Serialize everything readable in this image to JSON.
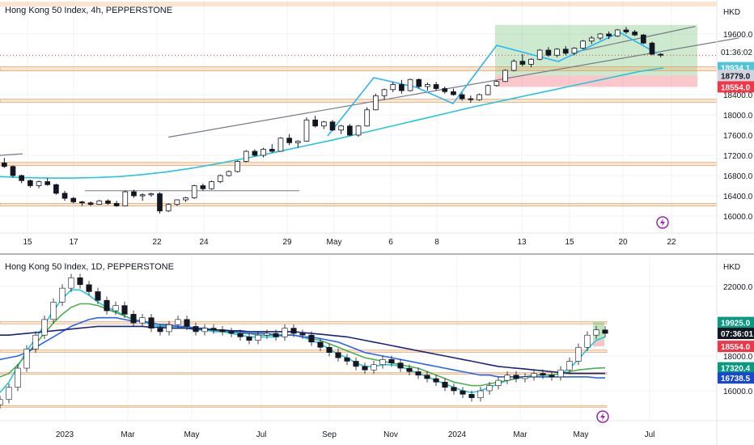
{
  "currency": "HKD",
  "chart_data": [
    {
      "type": "candlestick",
      "title": "Hong Kong 50 Index, 4h, PEPPERSTONE",
      "y_ticks": [
        "19600.0",
        "18400.0",
        "18000.0",
        "17600.0",
        "17200.0",
        "16800.0",
        "16400.0",
        "16000.0"
      ],
      "x_ticks": [
        "15",
        "17",
        "22",
        "24",
        "29",
        "May",
        "6",
        "8",
        "13",
        "15",
        "20",
        "22"
      ],
      "timer": "01:36:02",
      "price_labels": [
        {
          "text": "18934.1",
          "bg": "#4ec6d6"
        },
        {
          "text": "18779.0",
          "bg": "#d1d4dc"
        },
        {
          "text": "18554.0",
          "bg": "#f23645"
        }
      ],
      "zones": [
        {
          "name": "take-profit-zone",
          "low": 18779,
          "high": 19780,
          "color": "#4caf50"
        },
        {
          "name": "stop-zone",
          "low": 18554,
          "high": 18779,
          "color": "#f23645"
        },
        {
          "name": "resistance-band-1",
          "low": 18870,
          "high": 18950,
          "color": "#f0a868"
        },
        {
          "name": "resistance-band-2",
          "low": 18250,
          "high": 18310,
          "color": "#f0a868"
        },
        {
          "name": "support-band-1",
          "low": 17000,
          "high": 17060,
          "color": "#f0a868"
        },
        {
          "name": "support-band-2",
          "low": 16200,
          "high": 16250,
          "color": "#f0a868"
        }
      ],
      "candles_ohlc": [
        [
          17050,
          17150,
          16950,
          16980
        ],
        [
          16980,
          17000,
          16760,
          16800
        ],
        [
          16800,
          16820,
          16650,
          16700
        ],
        [
          16700,
          16720,
          16560,
          16600
        ],
        [
          16600,
          16700,
          16550,
          16680
        ],
        [
          16680,
          16750,
          16600,
          16620
        ],
        [
          16620,
          16640,
          16420,
          16450
        ],
        [
          16450,
          16500,
          16300,
          16350
        ],
        [
          16350,
          16380,
          16250,
          16280
        ],
        [
          16280,
          16300,
          16200,
          16260
        ],
        [
          16260,
          16290,
          16200,
          16230
        ],
        [
          16230,
          16320,
          16220,
          16300
        ],
        [
          16300,
          16330,
          16220,
          16250
        ],
        [
          16250,
          16300,
          16180,
          16200
        ],
        [
          16200,
          16500,
          16190,
          16480
        ],
        [
          16480,
          16520,
          16360,
          16400
        ],
        [
          16400,
          16450,
          16300,
          16420
        ],
        [
          16420,
          16460,
          16380,
          16440
        ],
        [
          16440,
          16470,
          16050,
          16100
        ],
        [
          16100,
          16250,
          16080,
          16230
        ],
        [
          16230,
          16330,
          16200,
          16320
        ],
        [
          16320,
          16380,
          16280,
          16360
        ],
        [
          16360,
          16620,
          16340,
          16600
        ],
        [
          16600,
          16640,
          16500,
          16540
        ],
        [
          16540,
          16700,
          16520,
          16680
        ],
        [
          16680,
          16820,
          16650,
          16800
        ],
        [
          16800,
          16900,
          16780,
          16880
        ],
        [
          16880,
          17100,
          16860,
          17080
        ],
        [
          17080,
          17300,
          17060,
          17280
        ],
        [
          17280,
          17320,
          17180,
          17200
        ],
        [
          17200,
          17350,
          17160,
          17320
        ],
        [
          17320,
          17420,
          17250,
          17280
        ],
        [
          17280,
          17560,
          17270,
          17540
        ],
        [
          17540,
          17620,
          17400,
          17450
        ],
        [
          17450,
          17500,
          17350,
          17480
        ],
        [
          17480,
          17950,
          17470,
          17900
        ],
        [
          17900,
          17980,
          17750,
          17780
        ],
        [
          17780,
          17880,
          17720,
          17860
        ],
        [
          17860,
          17900,
          17680,
          17700
        ],
        [
          17700,
          17800,
          17620,
          17780
        ],
        [
          17780,
          17820,
          17580,
          17600
        ],
        [
          17600,
          17800,
          17570,
          17780
        ],
        [
          17780,
          18150,
          17770,
          18100
        ],
        [
          18100,
          18420,
          18090,
          18380
        ],
        [
          18380,
          18520,
          18300,
          18500
        ],
        [
          18500,
          18650,
          18450,
          18600
        ],
        [
          18600,
          18690,
          18420,
          18480
        ],
        [
          18480,
          18720,
          18460,
          18700
        ],
        [
          18700,
          18720,
          18520,
          18560
        ],
        [
          18560,
          18640,
          18480,
          18600
        ],
        [
          18600,
          18650,
          18480,
          18520
        ],
        [
          18520,
          18560,
          18420,
          18460
        ],
        [
          18460,
          18520,
          18380,
          18400
        ],
        [
          18400,
          18440,
          18280,
          18320
        ],
        [
          18320,
          18380,
          18240,
          18300
        ],
        [
          18300,
          18420,
          18280,
          18400
        ],
        [
          18400,
          18600,
          18390,
          18580
        ],
        [
          18580,
          18680,
          18560,
          18660
        ],
        [
          18660,
          18900,
          18650,
          18880
        ],
        [
          18880,
          19100,
          18860,
          19060
        ],
        [
          19060,
          19200,
          18960,
          19000
        ],
        [
          19000,
          19120,
          18940,
          19100
        ],
        [
          19100,
          19300,
          19080,
          19280
        ],
        [
          19280,
          19340,
          19150,
          19180
        ],
        [
          19180,
          19320,
          19140,
          19300
        ],
        [
          19300,
          19360,
          19180,
          19220
        ],
        [
          19220,
          19340,
          19180,
          19320
        ],
        [
          19320,
          19480,
          19300,
          19460
        ],
        [
          19460,
          19560,
          19400,
          19520
        ],
        [
          19520,
          19620,
          19480,
          19600
        ],
        [
          19600,
          19650,
          19500,
          19560
        ],
        [
          19560,
          19700,
          19540,
          19680
        ],
        [
          19680,
          19740,
          19600,
          19640
        ],
        [
          19640,
          19680,
          19560,
          19580
        ],
        [
          19580,
          19600,
          19400,
          19420
        ],
        [
          19420,
          19450,
          19180,
          19200
        ],
        [
          19200,
          19220,
          19140,
          19180
        ]
      ],
      "ma_cyan": [
        16780,
        16760,
        16750,
        16750,
        16760,
        16780,
        16820,
        16870,
        16940,
        17020,
        17110,
        17200,
        17300,
        17400,
        17500,
        17610,
        17720,
        17830,
        17940,
        18050,
        18160,
        18260,
        18360,
        18460,
        18560,
        18660,
        18760,
        18860,
        18930
      ],
      "trendlines": [
        {
          "name": "rising-trendline",
          "from": [
            19,
            17560
          ],
          "to": [
            85,
            19520
          ],
          "color": "#787b86"
        },
        {
          "name": "channel-upper",
          "from": [
            66,
            19240
          ],
          "to": [
            80,
            19750
          ],
          "color": "#787b86"
        }
      ]
    },
    {
      "type": "candlestick",
      "title": "Hong Kong 50 Index, 1D, PEPPERSTONE",
      "y_ticks": [
        "22000.0",
        "18000.0",
        "16000.0"
      ],
      "x_ticks": [
        "2023",
        "Mar",
        "May",
        "Jul",
        "Sep",
        "Nov",
        "2024",
        "Mar",
        "May",
        "Jul"
      ],
      "timer": "07:36:01",
      "price_labels": [
        {
          "text": "19925.0",
          "bg": "#089981"
        },
        {
          "text": "18554.0",
          "bg": "#f23645"
        },
        {
          "text": "17320.4",
          "bg": "#089981"
        },
        {
          "text": "16738.5",
          "bg": "#1848cc"
        }
      ],
      "close_series": [
        15500,
        16200,
        17300,
        18400,
        19200,
        20100,
        21100,
        21900,
        22500,
        22100,
        21700,
        21200,
        20600,
        20900,
        20400,
        19900,
        20200,
        19600,
        19400,
        19800,
        20100,
        19700,
        19400,
        19600,
        19500,
        19400,
        19300,
        19100,
        18900,
        19200,
        19300,
        19100,
        19600,
        19300,
        19200,
        18800,
        18500,
        18200,
        17900,
        17700,
        17400,
        17200,
        17500,
        17800,
        17600,
        17300,
        17100,
        16900,
        16700,
        16500,
        16200,
        16000,
        15800,
        15600,
        16000,
        16300,
        16600,
        16900,
        16700,
        16800,
        17000,
        16900,
        16800,
        17200,
        17700,
        18500,
        19200,
        19500,
        19300
      ],
      "ma_series": [
        {
          "name": "ma-cyan",
          "color": "#26c6da",
          "values": [
            15900,
            16500,
            17400,
            18300,
            19000,
            19800,
            20600,
            21300,
            21800,
            21800,
            21500,
            21100,
            20800,
            20600,
            20300,
            20100,
            20000,
            19800,
            19700,
            19700,
            19700,
            19600,
            19500,
            19500,
            19400,
            19400,
            19300,
            19200,
            19100,
            19100,
            19100,
            19100,
            19200,
            19200,
            19100,
            18900,
            18700,
            18400,
            18100,
            17900,
            17600,
            17400,
            17400,
            17500,
            17500,
            17400,
            17200,
            17000,
            16800,
            16600,
            16400,
            16200,
            16000,
            15900,
            16000,
            16200,
            16400,
            16600,
            16700,
            16800,
            16900,
            16900,
            16900,
            17000,
            17300,
            17800,
            18400,
            18900,
            19100
          ]
        },
        {
          "name": "ma-green",
          "color": "#4caf50",
          "values": [
            16800,
            17000,
            17500,
            18100,
            18700,
            19300,
            19900,
            20400,
            20800,
            21000,
            21000,
            20900,
            20700,
            20500,
            20300,
            20100,
            20000,
            19900,
            19800,
            19700,
            19700,
            19600,
            19600,
            19500,
            19500,
            19400,
            19400,
            19300,
            19300,
            19200,
            19200,
            19200,
            19200,
            19200,
            19100,
            19000,
            18900,
            18700,
            18500,
            18300,
            18100,
            17900,
            17800,
            17700,
            17600,
            17500,
            17400,
            17300,
            17100,
            16900,
            16700,
            16500,
            16400,
            16300,
            16300,
            16400,
            16500,
            16600,
            16700,
            16800,
            16900,
            16900,
            16900,
            17000,
            17100,
            17200,
            17250,
            17300,
            17320
          ]
        },
        {
          "name": "ma-blue",
          "color": "#2962ff",
          "values": [
            17800,
            17900,
            18000,
            18200,
            18500,
            18800,
            19100,
            19400,
            19700,
            19900,
            20100,
            20200,
            20200,
            20200,
            20100,
            20000,
            20000,
            19900,
            19800,
            19800,
            19700,
            19700,
            19600,
            19600,
            19500,
            19500,
            19400,
            19400,
            19300,
            19300,
            19300,
            19200,
            19200,
            19200,
            19100,
            19100,
            19000,
            18900,
            18800,
            18600,
            18400,
            18200,
            18100,
            18000,
            17900,
            17800,
            17700,
            17600,
            17500,
            17400,
            17300,
            17200,
            17100,
            17000,
            16900,
            16900,
            16800,
            16800,
            16800,
            16800,
            16800,
            16800,
            16800,
            16800,
            16800,
            16800,
            16800,
            16750,
            16740
          ]
        },
        {
          "name": "ma-navy",
          "color": "#1a237e",
          "values": [
            19200,
            19200,
            19250,
            19300,
            19350,
            19400,
            19450,
            19500,
            19550,
            19600,
            19650,
            19700,
            19700,
            19700,
            19700,
            19700,
            19700,
            19650,
            19650,
            19600,
            19600,
            19600,
            19550,
            19550,
            19500,
            19500,
            19450,
            19450,
            19400,
            19400,
            19400,
            19400,
            19400,
            19400,
            19350,
            19300,
            19250,
            19200,
            19150,
            19100,
            19000,
            18900,
            18800,
            18700,
            18600,
            18500,
            18400,
            18300,
            18200,
            18100,
            18000,
            17900,
            17800,
            17700,
            17600,
            17500,
            17400,
            17350,
            17300,
            17250,
            17200,
            17150,
            17100,
            17050,
            17000,
            17000,
            17000,
            17000,
            17000
          ]
        }
      ],
      "bands": [
        {
          "name": "resistance-band-top",
          "low": 19850,
          "high": 19990,
          "color": "#f0a868"
        },
        {
          "name": "band-mid",
          "low": 18200,
          "high": 18350,
          "color": "#f0a868"
        },
        {
          "name": "band-low",
          "low": 16950,
          "high": 17050,
          "color": "#f0a868"
        },
        {
          "name": "band-bottom",
          "low": 15050,
          "high": 15150,
          "color": "#f0a868"
        }
      ]
    }
  ]
}
